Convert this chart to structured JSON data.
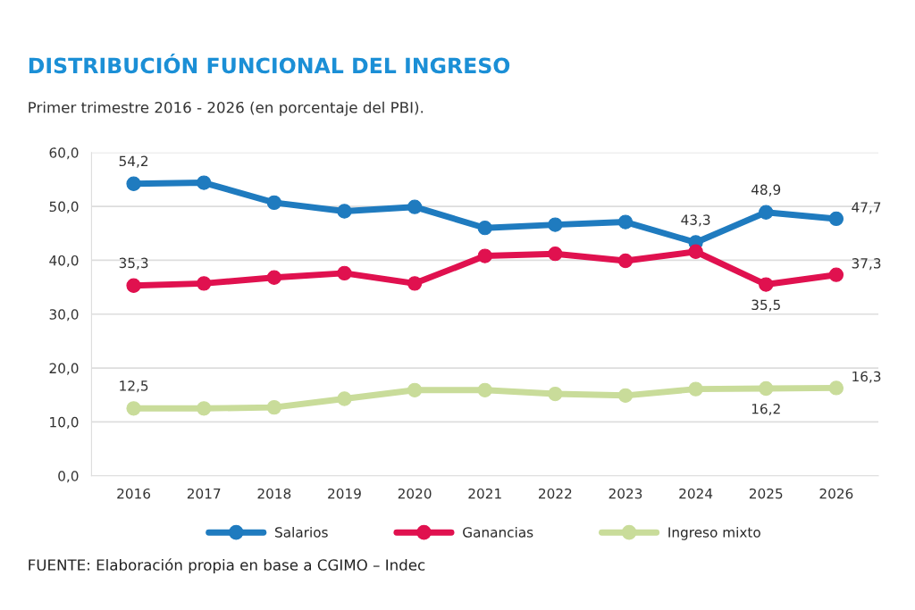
{
  "chart_data": {
    "type": "line",
    "title": "DISTRIBUCIÓN FUNCIONAL DEL INGRESO",
    "subtitle": "Primer trimestre 2016 - 2026 (en porcentaje del PBI).",
    "categories": [
      "2016",
      "2017",
      "2018",
      "2019",
      "2020",
      "2021",
      "2022",
      "2023",
      "2024",
      "2025",
      "2026"
    ],
    "series": [
      {
        "name": "Salarios",
        "color": "#1f7bbf",
        "values": [
          54.2,
          54.4,
          50.7,
          49.1,
          49.9,
          46.0,
          46.6,
          47.1,
          43.3,
          48.9,
          47.7
        ],
        "value_labels": [
          "54,2",
          null,
          null,
          null,
          null,
          null,
          null,
          null,
          "43,3",
          "48,9",
          "47,7"
        ]
      },
      {
        "name": "Ganancias",
        "color": "#e0114f",
        "values": [
          35.3,
          35.7,
          36.8,
          37.6,
          35.7,
          40.8,
          41.2,
          39.9,
          41.6,
          35.5,
          37.3
        ],
        "value_labels": [
          "35,3",
          null,
          null,
          null,
          null,
          null,
          null,
          null,
          null,
          "35,5",
          "37,3"
        ]
      },
      {
        "name": "Ingreso mixto",
        "color": "#c9dc9a",
        "values": [
          12.5,
          12.5,
          12.7,
          14.3,
          15.9,
          15.9,
          15.2,
          14.9,
          16.1,
          16.2,
          16.3
        ],
        "value_labels": [
          "12,5",
          null,
          null,
          null,
          null,
          null,
          null,
          null,
          null,
          "16,2",
          "16,3"
        ]
      }
    ],
    "ylim": [
      0,
      60
    ],
    "yticks": [
      {
        "value": 0,
        "label": "0,0"
      },
      {
        "value": 10,
        "label": "10,0"
      },
      {
        "value": 20,
        "label": "20,0"
      },
      {
        "value": 30,
        "label": "30,0"
      },
      {
        "value": 40,
        "label": "40,0"
      },
      {
        "value": 50,
        "label": "50,0"
      },
      {
        "value": 60,
        "label": "60,0"
      }
    ],
    "grid": "y",
    "legend": "bottom",
    "marker": "circle",
    "line_style": "solid",
    "annotations": [
      "FUENTE: Elaboración propia en base a CGIMO – Indec"
    ]
  }
}
